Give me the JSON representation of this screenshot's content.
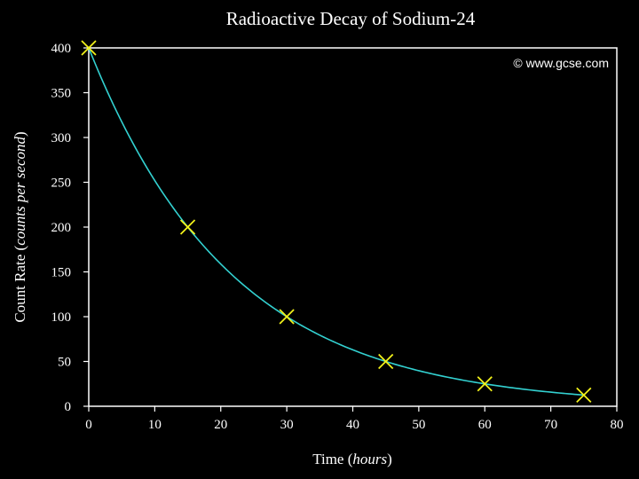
{
  "chart_data": {
    "type": "scatter",
    "title": "Radioactive Decay of Sodium-24",
    "watermark": "© www.gcse.com",
    "xlabel": {
      "main": "Time",
      "unit": "hours"
    },
    "ylabel": {
      "main": "Count Rate",
      "unit": "counts per second"
    },
    "xlim": [
      0,
      80
    ],
    "ylim": [
      0,
      400
    ],
    "xticks": [
      "0",
      "10",
      "20",
      "30",
      "40",
      "50",
      "60",
      "70",
      "80"
    ],
    "yticks": [
      "0",
      "50",
      "100",
      "150",
      "200",
      "250",
      "300",
      "350",
      "400"
    ],
    "grid": false,
    "series": [
      {
        "marker": "x",
        "points": [
          {
            "x": 0,
            "y": 400
          },
          {
            "x": 15,
            "y": 200
          },
          {
            "x": 30,
            "y": 100
          },
          {
            "x": 45,
            "y": 50
          },
          {
            "x": 60,
            "y": 25
          },
          {
            "x": 75,
            "y": 12.5
          }
        ]
      }
    ],
    "fit_curve": {
      "type": "exponential",
      "y0": 400,
      "half_life": 15,
      "x_range": [
        0,
        75
      ]
    }
  },
  "colors": {
    "background": "#000000",
    "plot_background": "#000000",
    "axis": "#ffffff",
    "text": "#ffffff",
    "curve": "#33d1d1",
    "marker": "#f2f21a"
  }
}
